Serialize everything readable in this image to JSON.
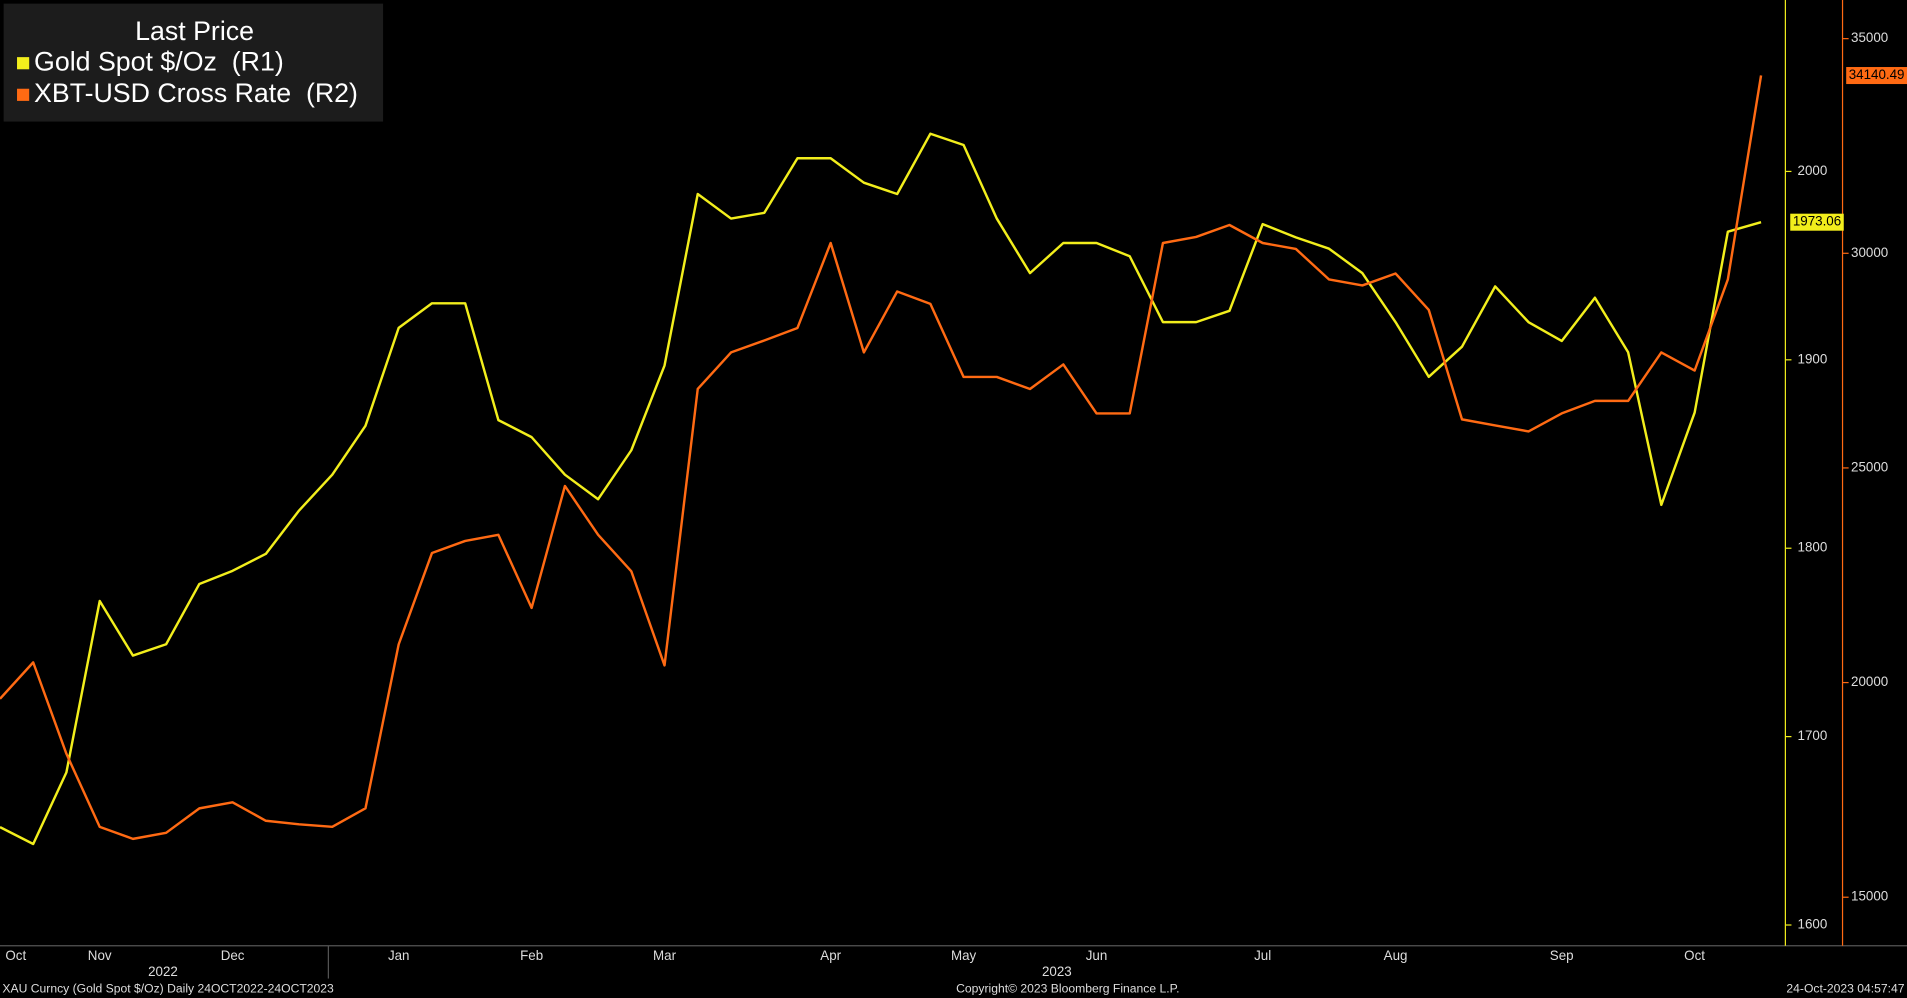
{
  "chart_data": {
    "type": "line",
    "legend_title": "Last Price",
    "categories": [
      "Oct",
      null,
      null,
      "Nov",
      null,
      null,
      null,
      "Dec",
      null,
      null,
      null,
      null,
      "Jan",
      null,
      null,
      null,
      "Feb",
      null,
      null,
      null,
      "Mar",
      null,
      null,
      null,
      null,
      "Apr",
      null,
      null,
      null,
      "May",
      null,
      null,
      null,
      "Jun",
      null,
      null,
      null,
      null,
      "Jul",
      null,
      null,
      null,
      "Aug",
      null,
      null,
      null,
      null,
      "Sep",
      null,
      null,
      null,
      "Oct",
      null,
      null
    ],
    "x_year_labels": [
      "2022",
      "2023"
    ],
    "series": [
      {
        "name": "Gold Spot $/Oz  (R1)",
        "color": "#f2ee1c",
        "axis": "y",
        "values": [
          1652,
          1643,
          1681,
          1772,
          1743,
          1749,
          1781,
          1788,
          1797,
          1820,
          1839,
          1865,
          1917,
          1930,
          1930,
          1868,
          1859,
          1839,
          1826,
          1852,
          1897,
          1988,
          1975,
          1978,
          2007,
          2007,
          1994,
          1988,
          2020,
          2014,
          1975,
          1946,
          1962,
          1962,
          1955,
          1920,
          1920,
          1926,
          1972,
          1965,
          1959,
          1946,
          1920,
          1891,
          1907,
          1939,
          1920,
          1910,
          1933,
          1904,
          1823,
          1872,
          1968,
          1973.06
        ]
      },
      {
        "name": "XBT-USD Cross Rate  (R2)",
        "color": "#ff6a13",
        "axis": "y2",
        "values": [
          19620,
          20470,
          18340,
          16640,
          16360,
          16500,
          17070,
          17210,
          16780,
          16700,
          16640,
          17070,
          20890,
          23020,
          23300,
          23440,
          21740,
          24580,
          23440,
          22590,
          20400,
          26840,
          27690,
          27970,
          28260,
          30240,
          27690,
          29110,
          28820,
          27120,
          27120,
          26840,
          27410,
          26270,
          26270,
          30240,
          30380,
          30660,
          30240,
          30100,
          29390,
          29250,
          29530,
          28680,
          26130,
          25990,
          25850,
          26270,
          26560,
          26560,
          27690,
          27270,
          29390,
          34140.49
        ]
      }
    ],
    "ylim": [
      1589,
      2091
    ],
    "yticks": [
      1600,
      1700,
      1800,
      1900,
      2000
    ],
    "y2lim": [
      13870,
      35900
    ],
    "y2ticks": [
      15000,
      20000,
      25000,
      30000,
      35000
    ],
    "footer_left": "XAU Curncy (Gold Spot  $/Oz)  Daily 24OCT2022-24OCT2023",
    "footer_center": "Copyright© 2023 Bloomberg Finance L.P.",
    "footer_right": "24-Oct-2023 04:57:47"
  }
}
